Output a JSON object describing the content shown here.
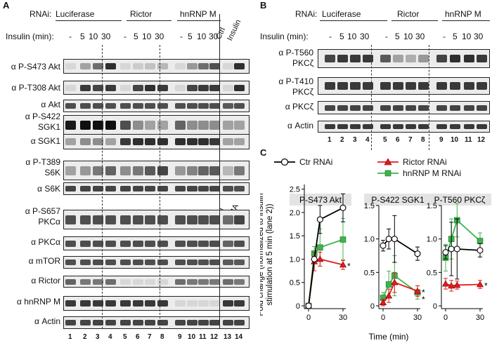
{
  "panelA": {
    "letter": "A",
    "rnai_prefix": "RNAi:",
    "groups": [
      "Luciferase",
      "Rictor",
      "hnRNP M"
    ],
    "insulin_label": "Insulin (min):",
    "insulin_ticks": [
      "-",
      "5",
      "10",
      "30",
      "-",
      "5",
      "10",
      "30",
      "-",
      "5",
      "10",
      "30"
    ],
    "ctrl_label": "Ctrl",
    "insulin_col_label": "Insulin",
    "pma_label": "PMA",
    "rows": [
      {
        "label": "α P-S473 Akt",
        "bands": [
          0.05,
          0.3,
          0.55,
          0.85,
          0.05,
          0.1,
          0.15,
          0.2,
          0.05,
          0.35,
          0.55,
          0.7,
          0.05,
          0.85
        ]
      },
      {
        "label": "α P-T308 Akt",
        "bands": [
          0.05,
          0.8,
          0.75,
          0.8,
          0.05,
          0.75,
          0.85,
          0.8,
          0.05,
          0.75,
          0.8,
          0.8,
          0.05,
          0.85
        ]
      },
      {
        "label": "α Akt",
        "bands": [
          0.7,
          0.7,
          0.7,
          0.7,
          0.7,
          0.7,
          0.7,
          0.7,
          0.7,
          0.7,
          0.7,
          0.7,
          0.65,
          0.7
        ]
      },
      {
        "label": "α P-S422",
        "label2": "SGK1",
        "bands": [
          0.95,
          1,
          1,
          1,
          0.7,
          0.4,
          0.3,
          0.3,
          0.6,
          0.4,
          0.4,
          0.4,
          0.3,
          0.3
        ]
      },
      {
        "label": "α SGK1",
        "bands": [
          0.3,
          0.4,
          0.4,
          0.3,
          0.8,
          0.85,
          0.85,
          0.85,
          0.85,
          0.85,
          0.85,
          0.8,
          0.3,
          0.3
        ]
      },
      {
        "label": "α P-T389",
        "label2": "S6K",
        "bands": [
          0.3,
          0.35,
          0.5,
          0.6,
          0.4,
          0.5,
          0.65,
          0.75,
          0.35,
          0.45,
          0.6,
          0.65,
          0.2,
          0.5
        ]
      },
      {
        "label": "α S6K",
        "bands": [
          0.75,
          0.75,
          0.75,
          0.75,
          0.75,
          0.75,
          0.75,
          0.75,
          0.75,
          0.75,
          0.75,
          0.75,
          0.7,
          0.7
        ]
      },
      {
        "label": "α P-S657",
        "label2": "PKCα",
        "bands": [
          0.7,
          0.7,
          0.7,
          0.7,
          0.7,
          0.7,
          0.7,
          0.7,
          0.7,
          0.7,
          0.7,
          0.7,
          0.55,
          0.75
        ]
      },
      {
        "label": "α PKCα",
        "bands": [
          0.7,
          0.7,
          0.7,
          0.7,
          0.7,
          0.7,
          0.7,
          0.7,
          0.7,
          0.7,
          0.7,
          0.7,
          0.6,
          0.7
        ]
      },
      {
        "label": "α mTOR",
        "bands": [
          0.7,
          0.7,
          0.7,
          0.7,
          0.7,
          0.7,
          0.7,
          0.7,
          0.7,
          0.7,
          0.7,
          0.7,
          0.65,
          0.65
        ]
      },
      {
        "label": "α Rictor",
        "bands": [
          0.6,
          0.5,
          0.5,
          0.55,
          0.05,
          0.05,
          0.05,
          0.05,
          0.55,
          0.5,
          0.5,
          0.5,
          0.55,
          0.5
        ]
      },
      {
        "label": "α hnRNP M",
        "bands": [
          0.8,
          0.8,
          0.8,
          0.8,
          0.8,
          0.8,
          0.8,
          0.8,
          0.05,
          0.05,
          0.05,
          0.05,
          0.8,
          0.8
        ]
      },
      {
        "label": "α Actin",
        "bands": [
          0.75,
          0.75,
          0.75,
          0.75,
          0.75,
          0.75,
          0.75,
          0.75,
          0.75,
          0.75,
          0.75,
          0.75,
          0.75,
          0.75
        ]
      }
    ],
    "lanes": [
      "1",
      "2",
      "3",
      "4",
      "5",
      "6",
      "7",
      "8",
      "9",
      "10",
      "11",
      "12",
      "13",
      "14"
    ]
  },
  "panelB": {
    "letter": "B",
    "rnai_prefix": "RNAi:",
    "groups": [
      "Luciferase",
      "Rictor",
      "hnRNP M"
    ],
    "insulin_label": "Insulin (min):",
    "insulin_ticks": [
      "-",
      "5",
      "10",
      "30",
      "-",
      "5",
      "10",
      "30",
      "-",
      "5",
      "10",
      "30"
    ],
    "rows": [
      {
        "label": "α P-T560",
        "label2": "PKCζ",
        "bands": [
          0.75,
          0.8,
          0.8,
          0.8,
          0.65,
          0.3,
          0.25,
          0.35,
          0.75,
          0.85,
          0.85,
          0.8
        ]
      },
      {
        "label": "α P-T410",
        "label2": "PKCζ",
        "bands": [
          0.8,
          0.8,
          0.8,
          0.8,
          0.8,
          0.8,
          0.8,
          0.8,
          0.8,
          0.8,
          0.8,
          0.8
        ]
      },
      {
        "label": "α PKCζ",
        "bands": [
          0.75,
          0.75,
          0.75,
          0.75,
          0.75,
          0.75,
          0.75,
          0.75,
          0.75,
          0.75,
          0.75,
          0.75
        ]
      },
      {
        "label": "α Actin",
        "bands": [
          0.8,
          0.8,
          0.8,
          0.8,
          0.8,
          0.8,
          0.8,
          0.8,
          0.8,
          0.8,
          0.8,
          0.8
        ]
      }
    ],
    "lanes": [
      "1",
      "2",
      "3",
      "4",
      "5",
      "6",
      "7",
      "8",
      "9",
      "10",
      "11",
      "12"
    ]
  },
  "panelC": {
    "letter": "C",
    "legend": [
      "Ctr RNAi",
      "Rictor RNAi",
      "hnRNP M RNAi"
    ],
    "ylabel_line1": "Fold change (normalized to insulin",
    "ylabel_line2": "stimulation at 5 min (lane 2))",
    "xlabel": "Time (min)",
    "colors": {
      "ctr": "#000000",
      "rictor": "#e41a1c",
      "hnrnp": "#3cb44b"
    }
  },
  "chart_data": [
    {
      "type": "line",
      "title": "P-S473 Akt",
      "xlabel": "Time (min)",
      "ylabel": "Fold change (normalized to insulin stimulation at 5 min (lane 2))",
      "x": [
        0,
        5,
        10,
        30
      ],
      "xticks": [
        0,
        30
      ],
      "ylim": [
        0,
        2.6
      ],
      "yticks": [
        0,
        0.5,
        1.0,
        1.5,
        2.0,
        2.5
      ],
      "yticklabels": [
        "0",
        "0.5",
        "1.0",
        "1.5",
        "2.0",
        "2.5"
      ],
      "series": [
        {
          "name": "Ctr RNAi",
          "values": [
            0,
            1.0,
            1.85,
            2.1
          ],
          "err": [
            0,
            0.05,
            0.3,
            0.3
          ]
        },
        {
          "name": "Rictor RNAi",
          "values": [
            0,
            0.95,
            1.0,
            0.88
          ],
          "err": [
            0,
            0.2,
            0.15,
            0.1
          ]
        },
        {
          "name": "hnRNP M RNAi",
          "values": [
            0,
            1.12,
            1.25,
            1.42
          ],
          "err": [
            0,
            0.15,
            0.4,
            0.45
          ]
        }
      ],
      "annotations": [
        {
          "text": "*",
          "series": "Rictor RNAi"
        }
      ]
    },
    {
      "type": "line",
      "title": "P-S422 SGK1",
      "xlabel": "Time (min)",
      "x": [
        0,
        5,
        10,
        30
      ],
      "xticks": [
        0,
        30
      ],
      "ylim": [
        0,
        1.5
      ],
      "yticks": [
        0,
        0.5,
        1.0,
        1.5
      ],
      "yticklabels": [
        "0",
        "0.5",
        "1.0",
        "1.5"
      ],
      "series": [
        {
          "name": "Ctr RNAi",
          "values": [
            0.9,
            1.0,
            1.0,
            0.78
          ],
          "err": [
            0.08,
            0.15,
            0.35,
            0.1
          ]
        },
        {
          "name": "Rictor RNAi",
          "values": [
            0.05,
            0.15,
            0.35,
            0.22
          ],
          "err": [
            0.05,
            0.1,
            0.15,
            0.08
          ]
        },
        {
          "name": "hnRNP M RNAi",
          "values": [
            0.12,
            0.32,
            0.45,
            0.2
          ],
          "err": [
            0.08,
            0.2,
            0.3,
            0.1
          ]
        }
      ],
      "annotations": [
        {
          "text": "*",
          "series": "Rictor RNAi"
        },
        {
          "text": "*",
          "series": "hnRNP M RNAi"
        }
      ]
    },
    {
      "type": "line",
      "title": "P-T560 PKCζ",
      "xlabel": "Time (min)",
      "x": [
        0,
        5,
        10,
        30
      ],
      "xticks": [
        0,
        30
      ],
      "ylim": [
        0,
        1.5
      ],
      "yticks": [
        0,
        0.5,
        1.0,
        1.5
      ],
      "yticklabels": [
        "0",
        "0.5",
        "1.0",
        "1.5"
      ],
      "series": [
        {
          "name": "Ctr RNAi",
          "values": [
            0.8,
            0.85,
            0.85,
            0.83
          ],
          "err": [
            0.1,
            0.4,
            0.45,
            0.1
          ]
        },
        {
          "name": "Rictor RNAi",
          "values": [
            0.33,
            0.3,
            0.31,
            0.32
          ],
          "err": [
            0.08,
            0.08,
            0.06,
            0.06
          ]
        },
        {
          "name": "hnRNP M RNAi",
          "values": [
            0.72,
            1.0,
            1.28,
            0.97
          ],
          "err": [
            0.2,
            0.3,
            0.25,
            0.12
          ]
        }
      ],
      "annotations": [
        {
          "text": "*",
          "series": "Rictor RNAi"
        }
      ]
    }
  ]
}
